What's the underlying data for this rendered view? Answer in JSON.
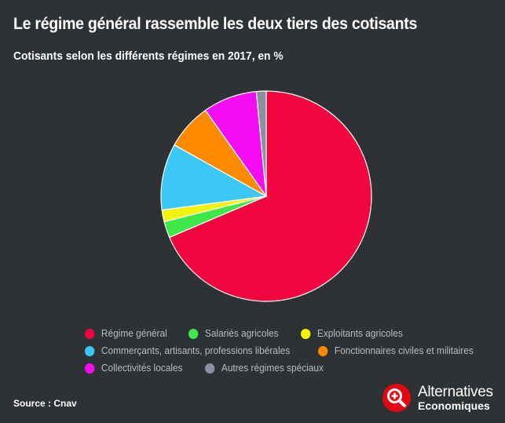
{
  "header": {
    "title": "Le régime général rassemble les deux tiers des cotisants",
    "subtitle": "Cotisants selon les différents régimes en 2017, en %"
  },
  "chart_data": {
    "type": "pie",
    "title": "Le régime général rassemble les deux tiers des cotisants",
    "subtitle": "Cotisants selon les différents régimes en 2017, en %",
    "slices": [
      {
        "label": "Régime général",
        "value": 68.6,
        "color": "#f0053f"
      },
      {
        "label": "Salariés agricoles",
        "value": 2.5,
        "color": "#3ee84a"
      },
      {
        "label": "Exploitants agricoles",
        "value": 1.8,
        "color": "#f5f20a"
      },
      {
        "label": "Commerçants, artisants, professions libérales",
        "value": 10.2,
        "color": "#3cc8f7"
      },
      {
        "label": "Fonctionnaires civiles et militaires",
        "value": 7.1,
        "color": "#ff8a00"
      },
      {
        "label": "Collectivités locales",
        "value": 8.3,
        "color": "#f60cf2"
      },
      {
        "label": "Autres régimes spéciaux",
        "value": 1.5,
        "color": "#8c8fa3"
      }
    ],
    "legend_position": "bottom"
  },
  "legend_rows": [
    [
      0,
      1,
      2
    ],
    [
      3,
      4
    ],
    [
      5,
      6
    ]
  ],
  "footer": {
    "source": "Source : Cnav",
    "logo_line1": "Alternatives",
    "logo_line2": "Economiques",
    "logo_color": "#e30613"
  }
}
